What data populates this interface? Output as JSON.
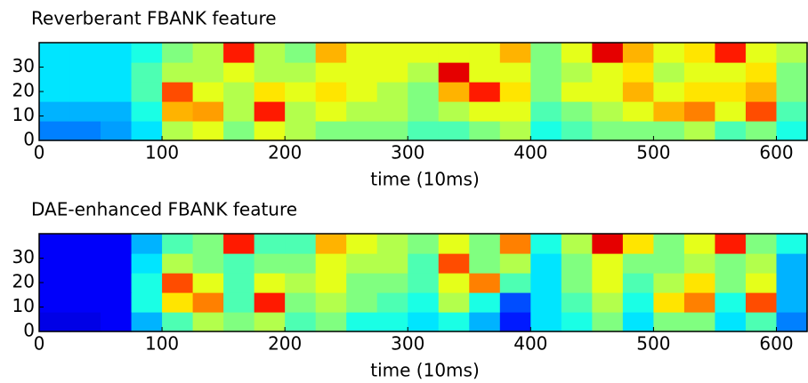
{
  "chart_data": [
    {
      "type": "heatmap",
      "title": "Reverberant FBANK feature",
      "xlabel": "time (10ms)",
      "colormap": "jet",
      "xlim": [
        0,
        625
      ],
      "ylim": [
        0,
        40
      ],
      "xticks": [
        0,
        100,
        200,
        300,
        400,
        500,
        600
      ],
      "yticks": [
        0,
        10,
        20,
        30
      ],
      "xbins": [
        0,
        25,
        50,
        75,
        100,
        125,
        150,
        175,
        200,
        225,
        250,
        275,
        300,
        325,
        350,
        375,
        400,
        425,
        450,
        475,
        500,
        525,
        550,
        575,
        600,
        625
      ],
      "ybins": [
        0,
        8,
        16,
        24,
        32,
        40
      ],
      "values": [
        [
          0.25,
          0.25,
          0.28,
          0.35,
          0.55,
          0.6,
          0.5,
          0.6,
          0.55,
          0.5,
          0.5,
          0.5,
          0.45,
          0.45,
          0.5,
          0.55,
          0.4,
          0.45,
          0.5,
          0.5,
          0.5,
          0.55,
          0.45,
          0.5,
          0.4
        ],
        [
          0.3,
          0.3,
          0.3,
          0.4,
          0.7,
          0.72,
          0.55,
          0.85,
          0.55,
          0.6,
          0.55,
          0.55,
          0.5,
          0.55,
          0.6,
          0.6,
          0.45,
          0.5,
          0.55,
          0.6,
          0.7,
          0.75,
          0.6,
          0.8,
          0.45
        ],
        [
          0.35,
          0.35,
          0.35,
          0.45,
          0.8,
          0.6,
          0.55,
          0.65,
          0.6,
          0.65,
          0.6,
          0.55,
          0.5,
          0.7,
          0.85,
          0.65,
          0.5,
          0.6,
          0.6,
          0.7,
          0.6,
          0.65,
          0.65,
          0.7,
          0.5
        ],
        [
          0.35,
          0.35,
          0.35,
          0.45,
          0.55,
          0.55,
          0.6,
          0.55,
          0.55,
          0.6,
          0.6,
          0.6,
          0.55,
          0.9,
          0.6,
          0.6,
          0.5,
          0.55,
          0.6,
          0.65,
          0.55,
          0.6,
          0.6,
          0.65,
          0.5
        ],
        [
          0.35,
          0.35,
          0.35,
          0.4,
          0.5,
          0.55,
          0.85,
          0.55,
          0.5,
          0.7,
          0.6,
          0.6,
          0.6,
          0.6,
          0.6,
          0.7,
          0.5,
          0.6,
          0.9,
          0.7,
          0.6,
          0.65,
          0.85,
          0.6,
          0.55
        ]
      ]
    },
    {
      "type": "heatmap",
      "title": "DAE-enhanced FBANK feature",
      "xlabel": "time (10ms)",
      "colormap": "jet",
      "xlim": [
        0,
        625
      ],
      "ylim": [
        0,
        40
      ],
      "xticks": [
        0,
        100,
        200,
        300,
        400,
        500,
        600
      ],
      "yticks": [
        0,
        10,
        20,
        30
      ],
      "xbins": [
        0,
        25,
        50,
        75,
        100,
        125,
        150,
        175,
        200,
        225,
        250,
        275,
        300,
        325,
        350,
        375,
        400,
        425,
        450,
        475,
        500,
        525,
        550,
        575,
        600,
        625
      ],
      "ybins": [
        0,
        8,
        16,
        24,
        32,
        40
      ],
      "values": [
        [
          0.1,
          0.1,
          0.12,
          0.3,
          0.45,
          0.55,
          0.5,
          0.55,
          0.45,
          0.5,
          0.4,
          0.4,
          0.35,
          0.4,
          0.3,
          0.15,
          0.35,
          0.4,
          0.5,
          0.35,
          0.5,
          0.5,
          0.35,
          0.45,
          0.25
        ],
        [
          0.12,
          0.12,
          0.12,
          0.4,
          0.65,
          0.75,
          0.45,
          0.85,
          0.5,
          0.55,
          0.5,
          0.45,
          0.4,
          0.55,
          0.4,
          0.2,
          0.35,
          0.45,
          0.55,
          0.4,
          0.65,
          0.75,
          0.4,
          0.8,
          0.3
        ],
        [
          0.12,
          0.12,
          0.12,
          0.4,
          0.8,
          0.6,
          0.45,
          0.6,
          0.55,
          0.6,
          0.5,
          0.5,
          0.45,
          0.6,
          0.75,
          0.45,
          0.35,
          0.5,
          0.6,
          0.45,
          0.55,
          0.65,
          0.5,
          0.6,
          0.3
        ],
        [
          0.12,
          0.12,
          0.12,
          0.35,
          0.55,
          0.5,
          0.45,
          0.5,
          0.5,
          0.6,
          0.55,
          0.55,
          0.45,
          0.8,
          0.5,
          0.55,
          0.35,
          0.5,
          0.6,
          0.5,
          0.5,
          0.55,
          0.5,
          0.55,
          0.3
        ],
        [
          0.12,
          0.12,
          0.12,
          0.3,
          0.45,
          0.5,
          0.85,
          0.45,
          0.45,
          0.7,
          0.6,
          0.55,
          0.5,
          0.6,
          0.5,
          0.75,
          0.4,
          0.55,
          0.9,
          0.65,
          0.5,
          0.6,
          0.85,
          0.5,
          0.4
        ]
      ]
    }
  ]
}
